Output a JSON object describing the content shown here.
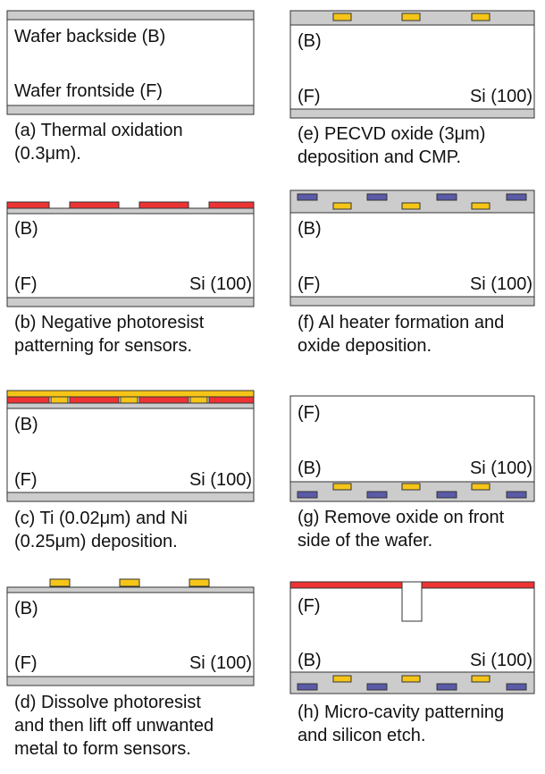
{
  "colors": {
    "oxide": "#cccccc",
    "wafer": "#ffffff",
    "outline": "#333333",
    "photoresist": "#ee3333",
    "sensor_metal": "#f5c518",
    "heater": "#5a5aa8"
  },
  "panels": [
    {
      "id": "a",
      "top_label": "Wafer backside (B)",
      "bottom_label": "Wafer frontside (F)",
      "material_label": "",
      "caption": [
        "(a) Thermal oxidation",
        "(0.3μm)."
      ]
    },
    {
      "id": "b",
      "top_label": "(B)",
      "bottom_label": "(F)",
      "material_label": "Si (100)",
      "caption": [
        "(b) Negative photoresist",
        "patterning for sensors."
      ]
    },
    {
      "id": "c",
      "top_label": "(B)",
      "bottom_label": "(F)",
      "material_label": "Si (100)",
      "caption": [
        "(c) Ti (0.02μm) and Ni",
        "(0.25μm) deposition."
      ]
    },
    {
      "id": "d",
      "top_label": "(B)",
      "bottom_label": "(F)",
      "material_label": "Si (100)",
      "caption": [
        "(d) Dissolve photoresist",
        "and then lift off unwanted",
        "metal to form sensors."
      ]
    },
    {
      "id": "e",
      "top_label": "(B)",
      "bottom_label": "(F)",
      "material_label": "Si (100)",
      "caption": [
        "(e) PECVD oxide (3μm)",
        "deposition and CMP."
      ]
    },
    {
      "id": "f",
      "top_label": "(B)",
      "bottom_label": "(F)",
      "material_label": "Si (100)",
      "caption": [
        "(f) Al heater formation and",
        "oxide deposition."
      ]
    },
    {
      "id": "g",
      "top_label": "(F)",
      "bottom_label": "(B)",
      "material_label": "Si (100)",
      "caption": [
        "(g) Remove oxide on front",
        "side of the wafer."
      ]
    },
    {
      "id": "h",
      "top_label": "(F)",
      "bottom_label": "(B)",
      "material_label": "Si (100)",
      "caption": [
        "(h) Micro-cavity patterning",
        "and silicon etch."
      ]
    }
  ]
}
